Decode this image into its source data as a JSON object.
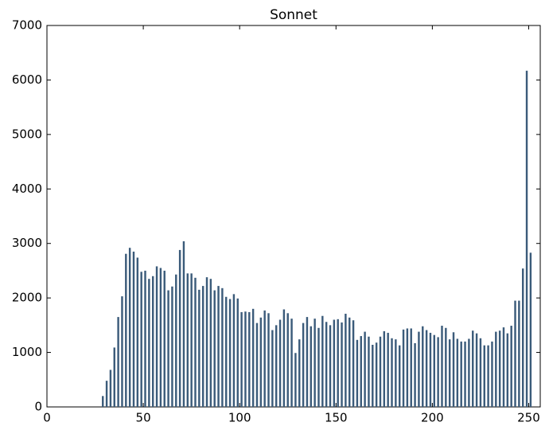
{
  "chart_data": {
    "type": "bar",
    "title": "Sonnet",
    "color": "#3b5b7a",
    "x": [
      29,
      31,
      33,
      35,
      37,
      39,
      41,
      43,
      45,
      47,
      49,
      51,
      53,
      55,
      57,
      59,
      61,
      63,
      65,
      67,
      69,
      71,
      73,
      75,
      77,
      79,
      81,
      83,
      85,
      87,
      89,
      91,
      93,
      95,
      97,
      99,
      101,
      103,
      105,
      107,
      109,
      111,
      113,
      115,
      117,
      119,
      121,
      123,
      125,
      127,
      129,
      131,
      133,
      135,
      137,
      139,
      141,
      143,
      145,
      147,
      149,
      151,
      153,
      155,
      157,
      159,
      161,
      163,
      165,
      167,
      169,
      171,
      173,
      175,
      177,
      179,
      181,
      183,
      185,
      187,
      189,
      191,
      193,
      195,
      197,
      199,
      201,
      203,
      205,
      207,
      209,
      211,
      213,
      215,
      217,
      219,
      221,
      223,
      225,
      227,
      229,
      231,
      233,
      235,
      237,
      239,
      241,
      243,
      245,
      247,
      249,
      251
    ],
    "values": [
      200,
      480,
      680,
      1090,
      1650,
      2030,
      2810,
      2920,
      2850,
      2740,
      2480,
      2500,
      2350,
      2400,
      2580,
      2550,
      2500,
      2140,
      2210,
      2430,
      2880,
      3040,
      2450,
      2450,
      2370,
      2150,
      2220,
      2380,
      2350,
      2140,
      2220,
      2180,
      2020,
      1980,
      2070,
      1990,
      1740,
      1750,
      1740,
      1800,
      1540,
      1640,
      1770,
      1720,
      1410,
      1500,
      1600,
      1790,
      1720,
      1620,
      990,
      1240,
      1540,
      1650,
      1480,
      1620,
      1450,
      1670,
      1560,
      1500,
      1600,
      1610,
      1550,
      1710,
      1640,
      1590,
      1230,
      1300,
      1380,
      1290,
      1140,
      1180,
      1290,
      1390,
      1360,
      1260,
      1240,
      1130,
      1420,
      1440,
      1440,
      1170,
      1380,
      1480,
      1410,
      1360,
      1320,
      1280,
      1490,
      1450,
      1240,
      1370,
      1250,
      1200,
      1200,
      1250,
      1400,
      1350,
      1260,
      1130,
      1130,
      1200,
      1380,
      1400,
      1460,
      1350,
      1490,
      1950,
      1950,
      2540,
      6170,
      2830
    ],
    "xlim": [
      0,
      256
    ],
    "xticks": [
      0,
      50,
      100,
      150,
      200,
      250
    ],
    "ylim": [
      0,
      7000
    ],
    "yticks": [
      0,
      1000,
      2000,
      3000,
      4000,
      5000,
      6000,
      7000
    ]
  }
}
